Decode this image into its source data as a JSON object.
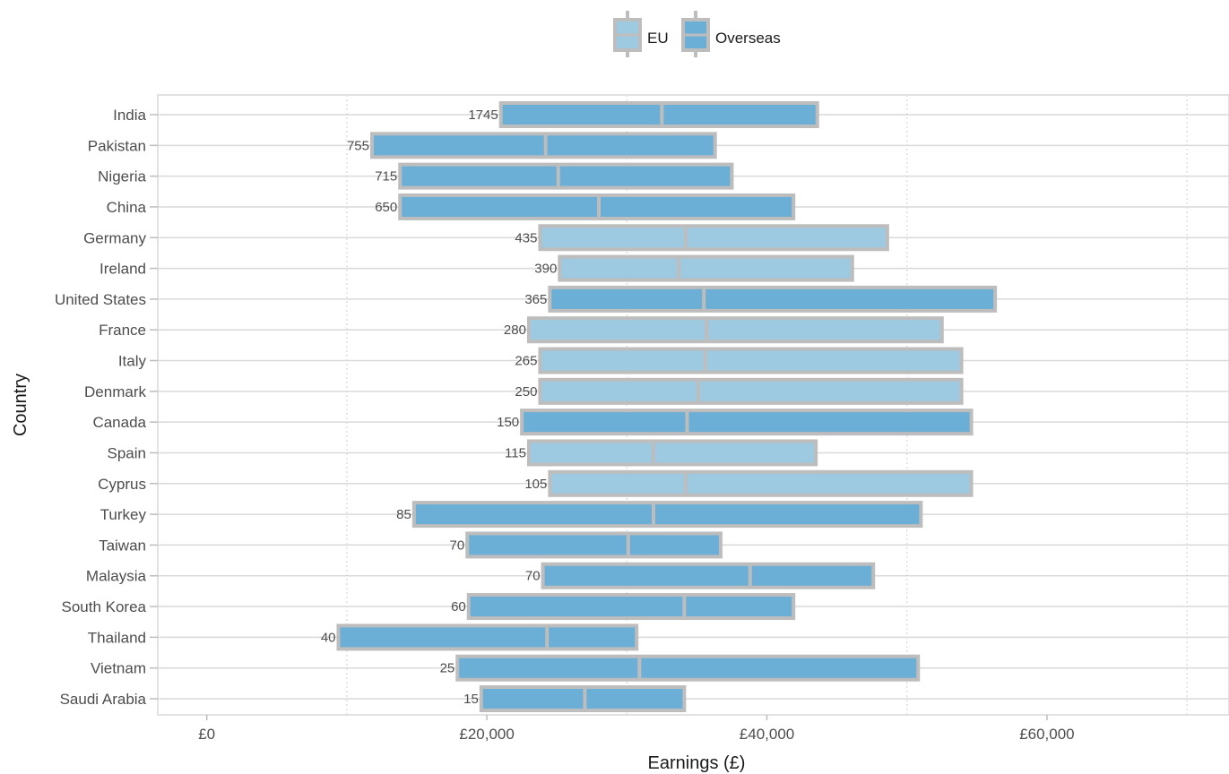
{
  "chart_data": {
    "type": "bar",
    "subtype": "floating-range-bar",
    "xlabel": "Earnings (£)",
    "ylabel": "Country",
    "xlim": [
      -3500,
      73000
    ],
    "x_ticks": [
      0,
      20000,
      40000,
      60000
    ],
    "x_tick_labels": [
      "£0",
      "£20,000",
      "£40,000",
      "£60,000"
    ],
    "grid": true,
    "legend_position": "top",
    "colors": {
      "EU": "#9ecae1",
      "Overseas": "#6baed6",
      "outline": "#bdbdbd"
    },
    "legend": [
      {
        "key": "EU",
        "label": "EU"
      },
      {
        "key": "Overseas",
        "label": "Overseas"
      }
    ],
    "rows": [
      {
        "country": "India",
        "group": "Overseas",
        "count": "1745",
        "low": 21000,
        "median": 32500,
        "high": 43600
      },
      {
        "country": "Pakistan",
        "group": "Overseas",
        "count": "755",
        "low": 11800,
        "median": 24200,
        "high": 36300
      },
      {
        "country": "Nigeria",
        "group": "Overseas",
        "count": "715",
        "low": 13800,
        "median": 25100,
        "high": 37500
      },
      {
        "country": "China",
        "group": "Overseas",
        "count": "650",
        "low": 13800,
        "median": 28000,
        "high": 41900
      },
      {
        "country": "Germany",
        "group": "EU",
        "count": "435",
        "low": 23800,
        "median": 34200,
        "high": 48600
      },
      {
        "country": "Ireland",
        "group": "EU",
        "count": "390",
        "low": 25200,
        "median": 33700,
        "high": 46100
      },
      {
        "country": "United States",
        "group": "Overseas",
        "count": "365",
        "low": 24500,
        "median": 35500,
        "high": 56300
      },
      {
        "country": "France",
        "group": "EU",
        "count": "280",
        "low": 23000,
        "median": 35700,
        "high": 52500
      },
      {
        "country": "Italy",
        "group": "EU",
        "count": "265",
        "low": 23800,
        "median": 35600,
        "high": 53900
      },
      {
        "country": "Denmark",
        "group": "EU",
        "count": "250",
        "low": 23800,
        "median": 35100,
        "high": 53900
      },
      {
        "country": "Canada",
        "group": "Overseas",
        "count": "150",
        "low": 22500,
        "median": 34300,
        "high": 54600
      },
      {
        "country": "Spain",
        "group": "EU",
        "count": "115",
        "low": 23000,
        "median": 31900,
        "high": 43500
      },
      {
        "country": "Cyprus",
        "group": "EU",
        "count": "105",
        "low": 24500,
        "median": 34200,
        "high": 54600
      },
      {
        "country": "Turkey",
        "group": "Overseas",
        "count": "85",
        "low": 14800,
        "median": 31900,
        "high": 51000
      },
      {
        "country": "Taiwan",
        "group": "Overseas",
        "count": "70",
        "low": 18600,
        "median": 30100,
        "high": 36700
      },
      {
        "country": "Malaysia",
        "group": "Overseas",
        "count": "70",
        "low": 24000,
        "median": 38800,
        "high": 47600
      },
      {
        "country": "South Korea",
        "group": "Overseas",
        "count": "60",
        "low": 18700,
        "median": 34100,
        "high": 41900
      },
      {
        "country": "Thailand",
        "group": "Overseas",
        "count": "40",
        "low": 9400,
        "median": 24300,
        "high": 30700
      },
      {
        "country": "Vietnam",
        "group": "Overseas",
        "count": "25",
        "low": 17900,
        "median": 30900,
        "high": 50800
      },
      {
        "country": "Saudi Arabia",
        "group": "Overseas",
        "count": "15",
        "low": 19600,
        "median": 27000,
        "high": 34100
      }
    ]
  }
}
